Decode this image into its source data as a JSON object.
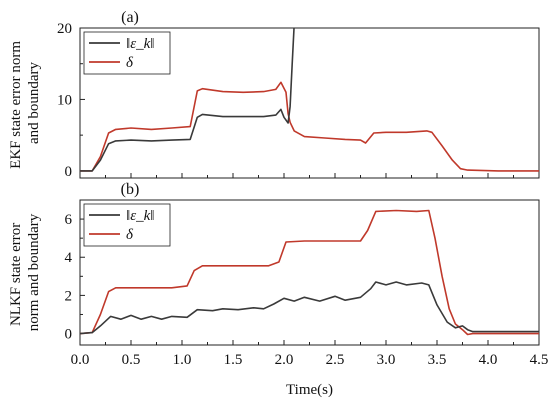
{
  "chart_data": [
    {
      "type": "line",
      "panel_label": "(a)",
      "ylabel_lines": [
        "EKF state error norm",
        "and boundary"
      ],
      "xlim": [
        0,
        4.5
      ],
      "ylim": [
        -1,
        20
      ],
      "yticks": [
        0,
        10,
        20
      ],
      "legend": {
        "placement": "top-left"
      },
      "series": [
        {
          "name": "‖ε_k‖",
          "color": "#3a3a3a",
          "points": [
            [
              0,
              0
            ],
            [
              0.12,
              0
            ],
            [
              0.2,
              1.5
            ],
            [
              0.28,
              3.8
            ],
            [
              0.35,
              4.2
            ],
            [
              0.5,
              4.3
            ],
            [
              0.7,
              4.2
            ],
            [
              0.9,
              4.3
            ],
            [
              1.08,
              4.4
            ],
            [
              1.15,
              7.5
            ],
            [
              1.2,
              7.9
            ],
            [
              1.4,
              7.6
            ],
            [
              1.6,
              7.6
            ],
            [
              1.8,
              7.6
            ],
            [
              1.92,
              7.8
            ],
            [
              1.97,
              8.6
            ],
            [
              2.0,
              7.5
            ],
            [
              2.04,
              6.7
            ],
            [
              2.06,
              9.0
            ],
            [
              2.08,
              15.0
            ],
            [
              2.1,
              20.5
            ]
          ]
        },
        {
          "name": "δ",
          "color": "#c0392b",
          "points": [
            [
              0,
              0
            ],
            [
              0.12,
              0
            ],
            [
              0.2,
              2.0
            ],
            [
              0.28,
              5.3
            ],
            [
              0.35,
              5.8
            ],
            [
              0.5,
              6.0
            ],
            [
              0.7,
              5.8
            ],
            [
              0.9,
              6.0
            ],
            [
              1.08,
              6.2
            ],
            [
              1.15,
              11.2
            ],
            [
              1.2,
              11.5
            ],
            [
              1.4,
              11.1
            ],
            [
              1.6,
              11.0
            ],
            [
              1.8,
              11.1
            ],
            [
              1.92,
              11.4
            ],
            [
              1.97,
              12.4
            ],
            [
              2.02,
              11.0
            ],
            [
              2.04,
              8.0
            ],
            [
              2.06,
              6.8
            ],
            [
              2.1,
              5.6
            ],
            [
              2.2,
              4.8
            ],
            [
              2.4,
              4.6
            ],
            [
              2.6,
              4.4
            ],
            [
              2.75,
              4.3
            ],
            [
              2.8,
              3.9
            ],
            [
              2.88,
              5.3
            ],
            [
              3.0,
              5.4
            ],
            [
              3.2,
              5.4
            ],
            [
              3.4,
              5.6
            ],
            [
              3.45,
              5.4
            ],
            [
              3.55,
              3.5
            ],
            [
              3.65,
              1.5
            ],
            [
              3.73,
              0.3
            ],
            [
              3.8,
              0.1
            ],
            [
              4.1,
              0
            ],
            [
              4.5,
              0
            ]
          ]
        }
      ]
    },
    {
      "type": "line",
      "panel_label": "(b)",
      "ylabel_lines": [
        "NLKF state error",
        "norm and boundary"
      ],
      "xlabel": "Time(s)",
      "xlim": [
        0,
        4.5
      ],
      "xticks": [
        0.0,
        0.5,
        1.0,
        1.5,
        2.0,
        2.5,
        3.0,
        3.5,
        4.0,
        4.5
      ],
      "xtick_labels": [
        "0.0",
        "0.5",
        "1.0",
        "1.5",
        "2.0",
        "2.5",
        "3.0",
        "3.5",
        "4.0",
        "4.5"
      ],
      "ylim": [
        -0.6,
        7
      ],
      "yticks": [
        0,
        2,
        4,
        6
      ],
      "legend": {
        "placement": "top-left"
      },
      "series": [
        {
          "name": "‖ε_k‖",
          "color": "#3a3a3a",
          "points": [
            [
              0,
              0
            ],
            [
              0.12,
              0.05
            ],
            [
              0.2,
              0.4
            ],
            [
              0.3,
              0.9
            ],
            [
              0.4,
              0.75
            ],
            [
              0.5,
              0.95
            ],
            [
              0.6,
              0.75
            ],
            [
              0.7,
              0.9
            ],
            [
              0.8,
              0.75
            ],
            [
              0.9,
              0.9
            ],
            [
              1.05,
              0.85
            ],
            [
              1.15,
              1.25
            ],
            [
              1.3,
              1.2
            ],
            [
              1.4,
              1.3
            ],
            [
              1.55,
              1.25
            ],
            [
              1.7,
              1.35
            ],
            [
              1.8,
              1.3
            ],
            [
              1.9,
              1.55
            ],
            [
              2.0,
              1.85
            ],
            [
              2.1,
              1.7
            ],
            [
              2.2,
              1.9
            ],
            [
              2.35,
              1.7
            ],
            [
              2.5,
              1.95
            ],
            [
              2.6,
              1.75
            ],
            [
              2.75,
              1.9
            ],
            [
              2.85,
              2.35
            ],
            [
              2.9,
              2.7
            ],
            [
              3.0,
              2.55
            ],
            [
              3.1,
              2.7
            ],
            [
              3.2,
              2.55
            ],
            [
              3.35,
              2.65
            ],
            [
              3.42,
              2.55
            ],
            [
              3.5,
              1.5
            ],
            [
              3.6,
              0.6
            ],
            [
              3.68,
              0.3
            ],
            [
              3.75,
              0.4
            ],
            [
              3.8,
              0.2
            ],
            [
              3.85,
              0.1
            ],
            [
              4.0,
              0.1
            ],
            [
              4.5,
              0.1
            ]
          ]
        },
        {
          "name": "δ",
          "color": "#c0392b",
          "points": [
            [
              0,
              0
            ],
            [
              0.12,
              0.05
            ],
            [
              0.2,
              1.0
            ],
            [
              0.28,
              2.2
            ],
            [
              0.35,
              2.4
            ],
            [
              0.6,
              2.4
            ],
            [
              0.9,
              2.4
            ],
            [
              1.05,
              2.5
            ],
            [
              1.12,
              3.3
            ],
            [
              1.2,
              3.55
            ],
            [
              1.5,
              3.55
            ],
            [
              1.85,
              3.55
            ],
            [
              1.95,
              3.75
            ],
            [
              2.02,
              4.8
            ],
            [
              2.2,
              4.85
            ],
            [
              2.5,
              4.85
            ],
            [
              2.75,
              4.85
            ],
            [
              2.82,
              5.4
            ],
            [
              2.9,
              6.4
            ],
            [
              3.1,
              6.45
            ],
            [
              3.3,
              6.4
            ],
            [
              3.42,
              6.45
            ],
            [
              3.48,
              5.0
            ],
            [
              3.55,
              3.0
            ],
            [
              3.62,
              1.3
            ],
            [
              3.68,
              0.5
            ],
            [
              3.75,
              0.2
            ],
            [
              3.8,
              -0.05
            ],
            [
              3.85,
              0
            ],
            [
              4.0,
              0
            ],
            [
              4.5,
              0
            ]
          ]
        }
      ]
    }
  ]
}
